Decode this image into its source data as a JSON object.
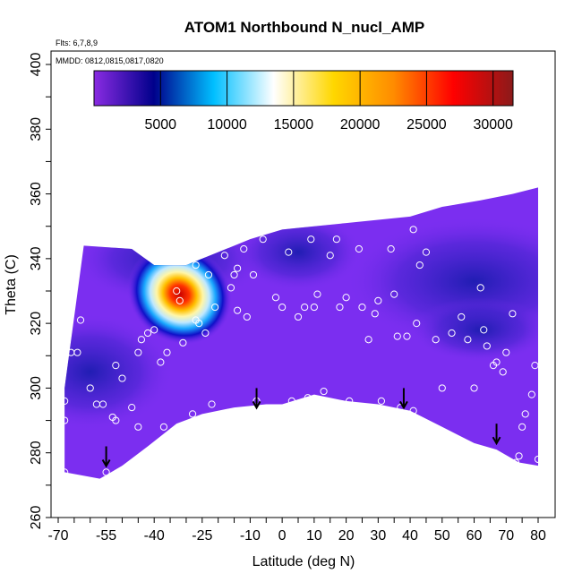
{
  "chart_data": {
    "type": "heatmap",
    "title": "ATOM1 Northbound N_nucl_AMP",
    "flights_label": "Flts: 6,7,8,9",
    "mmdd_label": "MMDD: 0812,0815,0817,0820",
    "xlabel": "Latitude (deg N)",
    "ylabel": "Theta (C)",
    "xlim": [
      -70,
      80
    ],
    "ylim": [
      260,
      400
    ],
    "x_ticks": [
      -70,
      -55,
      -40,
      -25,
      -10,
      0,
      10,
      20,
      30,
      40,
      50,
      60,
      70,
      80
    ],
    "y_ticks": [
      260,
      280,
      300,
      320,
      340,
      360,
      380,
      400
    ],
    "colorbar": {
      "range": [
        0,
        31500
      ],
      "ticks": [
        5000,
        10000,
        15000,
        20000,
        25000,
        30000
      ],
      "colors": [
        "#8a2be2",
        "#00008b",
        "#00bfff",
        "#ffffff",
        "#ffd700",
        "#ff8c00",
        "#ff0000",
        "#8b1a1a"
      ]
    },
    "hotspot": {
      "center": [
        -32,
        329
      ],
      "peak_value": 28000,
      "extent_lat": [
        -54,
        -20
      ],
      "extent_theta": [
        312,
        342
      ]
    },
    "boundary_upper": [
      [
        -62,
        344
      ],
      [
        -47,
        343
      ],
      [
        -40,
        338
      ],
      [
        -30,
        338
      ],
      [
        -10,
        346
      ],
      [
        0,
        349
      ],
      [
        10,
        350
      ],
      [
        20,
        351
      ],
      [
        30,
        352
      ],
      [
        40,
        353
      ],
      [
        50,
        356
      ],
      [
        62,
        358
      ],
      [
        72,
        360
      ],
      [
        80,
        362
      ]
    ],
    "boundary_lower": [
      [
        -68,
        274
      ],
      [
        -57,
        272
      ],
      [
        -50,
        276
      ],
      [
        -42,
        282
      ],
      [
        -33,
        289
      ],
      [
        -25,
        292
      ],
      [
        -15,
        294
      ],
      [
        -5,
        295
      ],
      [
        0,
        295
      ],
      [
        10,
        298
      ],
      [
        20,
        296
      ],
      [
        30,
        295
      ],
      [
        40,
        293
      ],
      [
        50,
        288
      ],
      [
        60,
        283
      ],
      [
        67,
        281
      ],
      [
        74,
        277
      ],
      [
        80,
        276
      ]
    ],
    "arrows": [
      [
        -55,
        282
      ],
      [
        -8,
        300
      ],
      [
        38,
        300
      ],
      [
        67,
        289
      ]
    ],
    "sample_points": [
      [
        -68,
        274
      ],
      [
        -68,
        290
      ],
      [
        -68,
        296
      ],
      [
        -66,
        311
      ],
      [
        -64,
        311
      ],
      [
        -63,
        321
      ],
      [
        -60,
        300
      ],
      [
        -58,
        295
      ],
      [
        -56,
        295
      ],
      [
        -55,
        274
      ],
      [
        -53,
        291
      ],
      [
        -52,
        307
      ],
      [
        -52,
        290
      ],
      [
        -50,
        303
      ],
      [
        -48,
        276
      ],
      [
        -47,
        294
      ],
      [
        -45,
        288
      ],
      [
        -45,
        311
      ],
      [
        -44,
        315
      ],
      [
        -42,
        317
      ],
      [
        -40,
        318
      ],
      [
        -38,
        308
      ],
      [
        -37,
        288
      ],
      [
        -36,
        311
      ],
      [
        -33,
        330
      ],
      [
        -32,
        327
      ],
      [
        -31,
        314
      ],
      [
        -28,
        292
      ],
      [
        -27,
        321
      ],
      [
        -27,
        338
      ],
      [
        -26,
        320
      ],
      [
        -24,
        317
      ],
      [
        -23,
        335
      ],
      [
        -22,
        295
      ],
      [
        -21,
        325
      ],
      [
        -18,
        341
      ],
      [
        -16,
        331
      ],
      [
        -15,
        335
      ],
      [
        -14,
        337
      ],
      [
        -14,
        324
      ],
      [
        -12,
        343
      ],
      [
        -11,
        322
      ],
      [
        -9,
        335
      ],
      [
        -8,
        296
      ],
      [
        -6,
        346
      ],
      [
        -2,
        328
      ],
      [
        0,
        325
      ],
      [
        2,
        342
      ],
      [
        3,
        296
      ],
      [
        5,
        322
      ],
      [
        7,
        325
      ],
      [
        8,
        297
      ],
      [
        9,
        346
      ],
      [
        10,
        325
      ],
      [
        11,
        329
      ],
      [
        13,
        299
      ],
      [
        15,
        341
      ],
      [
        17,
        346
      ],
      [
        18,
        325
      ],
      [
        20,
        328
      ],
      [
        21,
        296
      ],
      [
        24,
        343
      ],
      [
        25,
        325
      ],
      [
        27,
        315
      ],
      [
        29,
        323
      ],
      [
        30,
        327
      ],
      [
        31,
        296
      ],
      [
        34,
        343
      ],
      [
        35,
        329
      ],
      [
        36,
        316
      ],
      [
        37,
        294
      ],
      [
        39,
        316
      ],
      [
        41,
        293
      ],
      [
        41,
        349
      ],
      [
        42,
        320
      ],
      [
        43,
        338
      ],
      [
        45,
        342
      ],
      [
        48,
        315
      ],
      [
        50,
        300
      ],
      [
        53,
        317
      ],
      [
        56,
        322
      ],
      [
        58,
        315
      ],
      [
        60,
        300
      ],
      [
        62,
        331
      ],
      [
        63,
        318
      ],
      [
        64,
        313
      ],
      [
        66,
        307
      ],
      [
        67,
        308
      ],
      [
        69,
        305
      ],
      [
        70,
        311
      ],
      [
        72,
        323
      ],
      [
        73,
        277
      ],
      [
        74,
        279
      ],
      [
        75,
        288
      ],
      [
        76,
        292
      ],
      [
        78,
        298
      ],
      [
        79,
        307
      ],
      [
        80,
        278
      ]
    ]
  }
}
